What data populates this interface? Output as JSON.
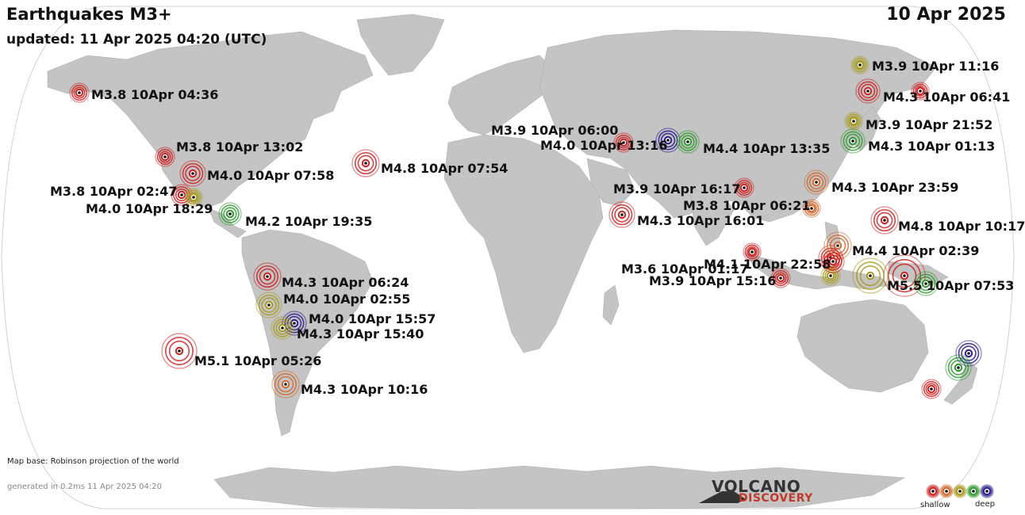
{
  "header": {
    "title": "Earthquakes M3+",
    "updated": "updated: 11 Apr 2025 04:20 (UTC)",
    "date": "10 Apr 2025"
  },
  "footer": {
    "map_base": "Map base: Robinson projection of the world",
    "generated": "generated in 0.2ms 11 Apr 2025 04:20",
    "logo_line1": "VOLCANO",
    "logo_line2": "DISCOVERY",
    "legend_shallow": "shallow",
    "legend_deep": "deep"
  },
  "colors": {
    "ocean": "#ffffff",
    "land": "#c4c4c4",
    "shallow": "#cc2222",
    "intermediate1": "#d06a30",
    "intermediate2": "#a89a1e",
    "intermediate3": "#2e9a2e",
    "deep": "#2a1c8c"
  },
  "quakes": [
    {
      "label": "M3.8 10Apr 04:36",
      "depth_class": "shallow"
    },
    {
      "label": "M3.8 10Apr 13:02",
      "depth_class": "shallow"
    },
    {
      "label": "M4.0 10Apr 07:58",
      "depth_class": "shallow"
    },
    {
      "label": "M3.8 10Apr 02:47",
      "depth_class": "shallow"
    },
    {
      "label": "M4.0 10Apr 18:29",
      "depth_class": "intermediate2"
    },
    {
      "label": "M4.2 10Apr 19:35",
      "depth_class": "intermediate3"
    },
    {
      "label": "M4.8 10Apr 07:54",
      "depth_class": "shallow"
    },
    {
      "label": "M4.3 10Apr 06:24",
      "depth_class": "shallow"
    },
    {
      "label": "M4.0 10Apr 02:55",
      "depth_class": "intermediate2"
    },
    {
      "label": "M4.0 10Apr 15:57",
      "depth_class": "deep"
    },
    {
      "label": "M4.3 10Apr 15:40",
      "depth_class": "intermediate2"
    },
    {
      "label": "M5.1 10Apr 05:26",
      "depth_class": "shallow"
    },
    {
      "label": "M4.3 10Apr 10:16",
      "depth_class": "intermediate1"
    },
    {
      "label": "M3.9 10Apr 06:00",
      "depth_class": "deep"
    },
    {
      "label": "M4.0 10Apr 13:16",
      "depth_class": "shallow"
    },
    {
      "label": "M4.4 10Apr 13:35",
      "depth_class": "intermediate3"
    },
    {
      "label": "M3.9 10Apr 16:17",
      "depth_class": "shallow"
    },
    {
      "label": "M4.3 10Apr 16:01",
      "depth_class": "shallow"
    },
    {
      "label": "M4.3 10Apr 23:59",
      "depth_class": "intermediate1"
    },
    {
      "label": "M3.8 10Apr 06:21",
      "depth_class": "intermediate1"
    },
    {
      "label": "M3.9 10Apr 11:16",
      "depth_class": "intermediate2"
    },
    {
      "label": "M4.3 10Apr 06:41",
      "depth_class": "shallow"
    },
    {
      "label": "M3.9 10Apr 21:52",
      "depth_class": "intermediate2"
    },
    {
      "label": "M4.3 10Apr 01:13",
      "depth_class": "intermediate3"
    },
    {
      "label": "M4.8 10Apr 10:17",
      "depth_class": "shallow"
    },
    {
      "label": "M3.6 10Apr 01:17",
      "depth_class": "shallow"
    },
    {
      "label": "M4.1 10Apr 22:58",
      "depth_class": "shallow"
    },
    {
      "label": "M3.9 10Apr 15:16",
      "depth_class": "shallow"
    },
    {
      "label": "M4.4 10Apr 02:39",
      "depth_class": "intermediate1"
    },
    {
      "label": "M5.5 10Apr 07:53",
      "depth_class": "shallow"
    },
    {
      "label": "",
      "depth_class": "shallow"
    },
    {
      "label": "",
      "depth_class": "intermediate3"
    },
    {
      "label": "",
      "depth_class": "intermediate2"
    },
    {
      "label": "",
      "depth_class": "intermediate2"
    },
    {
      "label": "",
      "depth_class": "shallow"
    },
    {
      "label": "",
      "depth_class": "deep"
    },
    {
      "label": "",
      "depth_class": "intermediate3"
    },
    {
      "label": "",
      "depth_class": "shallow"
    }
  ]
}
